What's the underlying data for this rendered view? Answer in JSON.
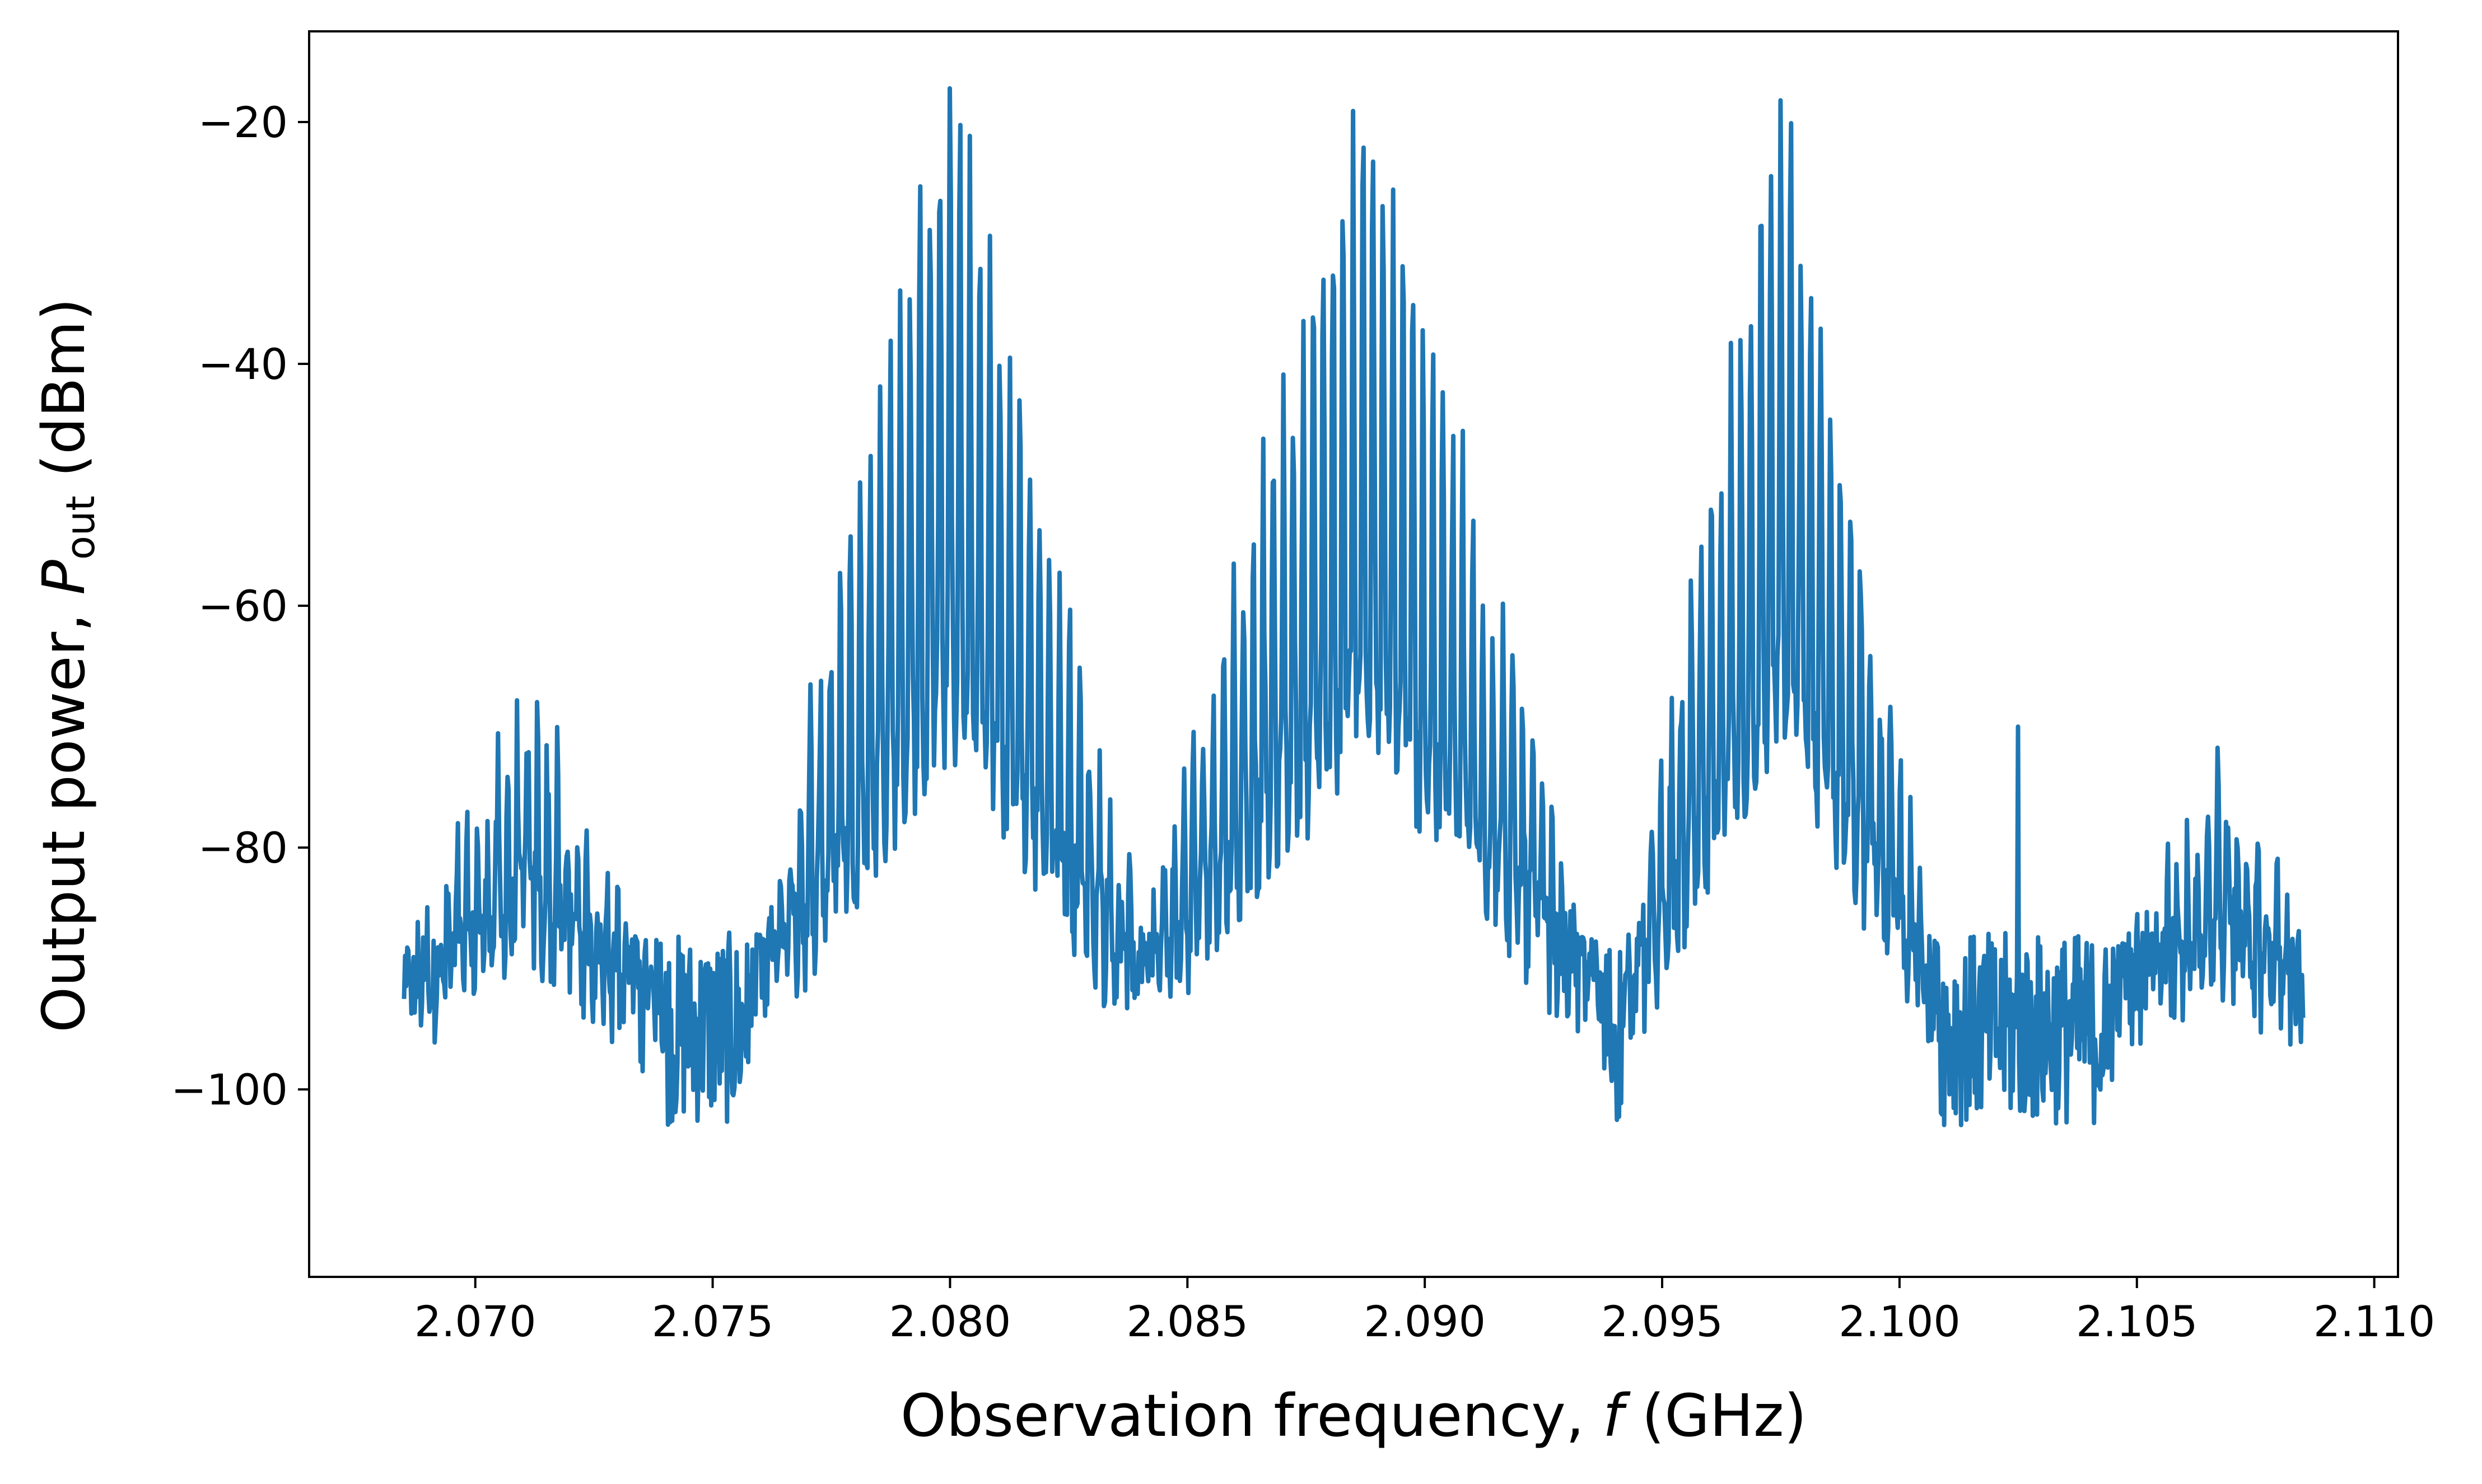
{
  "chart_data": {
    "type": "line",
    "title": "",
    "xlabel": {
      "main": "Observation frequency, ",
      "var": "f",
      "unit": " (GHz)"
    },
    "ylabel": {
      "main": "Output power, ",
      "var": "P",
      "sub": "out",
      "unit": " (dBm)"
    },
    "xlim": [
      2.0665,
      2.1105
    ],
    "ylim": [
      -115.5,
      -12.5
    ],
    "xticks": [
      2.07,
      2.075,
      2.08,
      2.085,
      2.09,
      2.095,
      2.1,
      2.105,
      2.11
    ],
    "xtick_labels": [
      "2.070",
      "2.075",
      "2.080",
      "2.085",
      "2.090",
      "2.095",
      "2.100",
      "2.105",
      "2.110"
    ],
    "yticks": [
      -100,
      -80,
      -60,
      -40,
      -20
    ],
    "ytick_labels": [
      "−100",
      "−80",
      "−60",
      "−40",
      "−20"
    ],
    "grid": false,
    "legend": "none",
    "series": [
      {
        "color": "#1f77b4",
        "x_range": [
          2.0685,
          2.1085
        ],
        "noise_floor_dbm": -95,
        "lobes": [
          {
            "center_ghz": 2.0711,
            "peak_dbm": -69,
            "half_width_ghz": 0.0012
          },
          {
            "center_ghz": 2.08,
            "peak_dbm": -18,
            "half_width_ghz": 0.0018
          },
          {
            "center_ghz": 2.0887,
            "peak_dbm": -18,
            "half_width_ghz": 0.0021
          },
          {
            "center_ghz": 2.0975,
            "peak_dbm": -18,
            "half_width_ghz": 0.0014
          },
          {
            "center_ghz": 2.1067,
            "peak_dbm": -74,
            "half_width_ghz": 0.001
          }
        ],
        "isolated_spikes": [
          {
            "x_ghz": 2.1025,
            "y_dbm": -70
          }
        ]
      }
    ]
  }
}
